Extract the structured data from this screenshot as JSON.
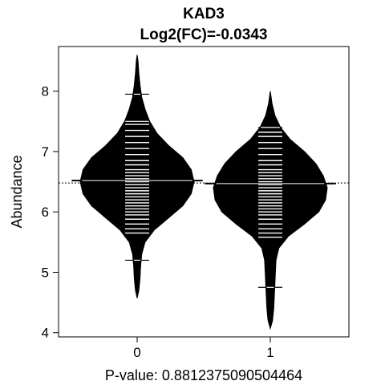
{
  "chart_data": {
    "type": "beanplot",
    "title": "KAD3",
    "subtitle": "Log2(FC)=-0.0343",
    "xlabel": "P-value: 0.8812375090504464",
    "ylabel": "Abundance",
    "categories": [
      "0",
      "1"
    ],
    "y_ticks": [
      4,
      5,
      6,
      7,
      8
    ],
    "ylim": [
      3.93,
      8.74
    ],
    "overall_mean": 6.48,
    "colors": {
      "bean": "#000000",
      "lines": "#ffffff",
      "background": "#ffffff"
    },
    "series": [
      {
        "group": "0",
        "mean": 6.52,
        "density": [
          [
            4.57,
            0.0
          ],
          [
            4.7,
            0.03
          ],
          [
            4.9,
            0.05
          ],
          [
            5.1,
            0.06
          ],
          [
            5.3,
            0.08
          ],
          [
            5.5,
            0.14
          ],
          [
            5.7,
            0.3
          ],
          [
            5.9,
            0.55
          ],
          [
            6.1,
            0.8
          ],
          [
            6.3,
            0.95
          ],
          [
            6.5,
            1.0
          ],
          [
            6.7,
            0.95
          ],
          [
            6.9,
            0.8
          ],
          [
            7.1,
            0.55
          ],
          [
            7.3,
            0.35
          ],
          [
            7.5,
            0.22
          ],
          [
            7.7,
            0.14
          ],
          [
            7.9,
            0.08
          ],
          [
            8.1,
            0.05
          ],
          [
            8.3,
            0.03
          ],
          [
            8.5,
            0.015
          ],
          [
            8.6,
            0.0
          ]
        ],
        "points": [
          5.2,
          5.65,
          5.72,
          5.8,
          5.88,
          5.95,
          6.0,
          6.05,
          6.1,
          6.15,
          6.2,
          6.25,
          6.3,
          6.35,
          6.4,
          6.45,
          6.5,
          6.55,
          6.6,
          6.65,
          6.7,
          6.78,
          6.85,
          6.95,
          7.05,
          7.15,
          7.25,
          7.35,
          7.45,
          7.5,
          7.95
        ]
      },
      {
        "group": "1",
        "mean": 6.47,
        "density": [
          [
            4.07,
            0.0
          ],
          [
            4.2,
            0.04
          ],
          [
            4.4,
            0.06
          ],
          [
            4.6,
            0.07
          ],
          [
            4.8,
            0.08
          ],
          [
            5.0,
            0.09
          ],
          [
            5.2,
            0.1
          ],
          [
            5.4,
            0.15
          ],
          [
            5.6,
            0.32
          ],
          [
            5.8,
            0.6
          ],
          [
            6.0,
            0.85
          ],
          [
            6.2,
            0.97
          ],
          [
            6.4,
            1.0
          ],
          [
            6.6,
            0.93
          ],
          [
            6.8,
            0.8
          ],
          [
            7.0,
            0.6
          ],
          [
            7.2,
            0.35
          ],
          [
            7.4,
            0.18
          ],
          [
            7.6,
            0.08
          ],
          [
            7.8,
            0.03
          ],
          [
            8.0,
            0.0
          ]
        ],
        "points": [
          4.75,
          5.58,
          5.65,
          5.72,
          5.8,
          5.88,
          5.95,
          6.0,
          6.05,
          6.1,
          6.15,
          6.2,
          6.25,
          6.3,
          6.35,
          6.4,
          6.45,
          6.5,
          6.55,
          6.6,
          6.65,
          6.7,
          6.78,
          6.85,
          6.95,
          7.05,
          7.15,
          7.25,
          7.32,
          7.4
        ]
      }
    ]
  }
}
